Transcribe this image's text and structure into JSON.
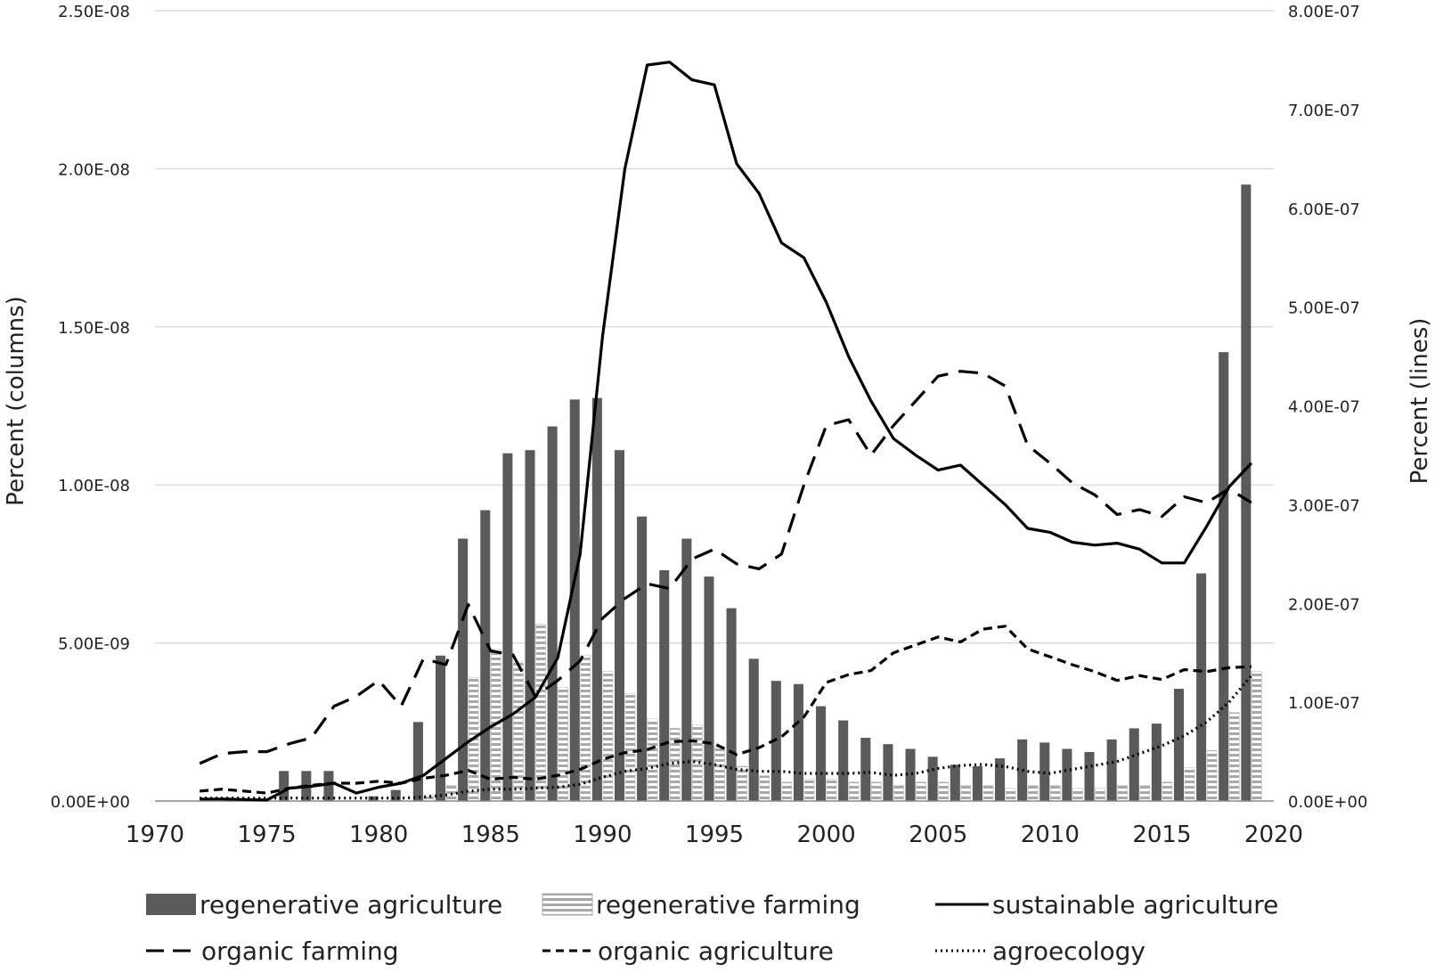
{
  "chart_data": {
    "type": "bar",
    "title": "",
    "xlabel": "",
    "ylabel_left": "Percent (columns)",
    "ylabel_right": "Percent (lines)",
    "x_ticks": [
      "1970",
      "1975",
      "1980",
      "1985",
      "1990",
      "1995",
      "2000",
      "2005",
      "2010",
      "2015",
      "2020"
    ],
    "x_range": [
      1970,
      2020
    ],
    "y_left_ticks": [
      "0.00E+00",
      "5.00E-09",
      "1.00E-08",
      "1.50E-08",
      "2.00E-08",
      "2.50E-08"
    ],
    "y_left_range": [
      0,
      2.5e-08
    ],
    "y_right_ticks": [
      "0.00E+00",
      "1.00E-07",
      "2.00E-07",
      "3.00E-07",
      "4.00E-07",
      "5.00E-07",
      "6.00E-07",
      "7.00E-07",
      "8.00E-07"
    ],
    "y_right_range": [
      0,
      8e-07
    ],
    "grid": "horizontal",
    "legend_position": "bottom",
    "years": [
      1972,
      1973,
      1974,
      1975,
      1976,
      1977,
      1978,
      1979,
      1980,
      1981,
      1982,
      1983,
      1984,
      1985,
      1986,
      1987,
      1988,
      1989,
      1990,
      1991,
      1992,
      1993,
      1994,
      1995,
      1996,
      1997,
      1998,
      1999,
      2000,
      2001,
      2002,
      2003,
      2004,
      2005,
      2006,
      2007,
      2008,
      2009,
      2010,
      2011,
      2012,
      2013,
      2014,
      2015,
      2016,
      2017,
      2018,
      2019
    ],
    "bar_series": [
      {
        "name": "regenerative agriculture",
        "axis": "left",
        "color": "#5a5a5a",
        "values": [
          0,
          0,
          0,
          0,
          9.5e-10,
          9.5e-10,
          9.5e-10,
          0,
          1.5e-10,
          3.5e-10,
          2.5e-09,
          4.6e-09,
          8.3e-09,
          9.2e-09,
          1.1e-08,
          1.11e-08,
          1.185e-08,
          1.27e-08,
          1.275e-08,
          1.11e-08,
          9e-09,
          7.3e-09,
          8.3e-09,
          7.1e-09,
          6.1e-09,
          4.5e-09,
          3.8e-09,
          3.7e-09,
          3e-09,
          2.55e-09,
          2e-09,
          1.8e-09,
          1.65e-09,
          1.4e-09,
          1.15e-09,
          1.1e-09,
          1.35e-09,
          1.95e-09,
          1.85e-09,
          1.65e-09,
          1.55e-09,
          1.95e-09,
          2.3e-09,
          2.45e-09,
          3.55e-09,
          7.2e-09,
          1.42e-08,
          1.95e-08
        ]
      },
      {
        "name": "regenerative farming",
        "axis": "left",
        "color": "#b5b5b5",
        "values": [
          0,
          0,
          0,
          0,
          0,
          0,
          0,
          0,
          0,
          0,
          2e-10,
          5e-10,
          3.9e-09,
          4.8e-09,
          4.4e-09,
          5.6e-09,
          3.6e-09,
          4.6e-09,
          4.1e-09,
          3.4e-09,
          2.6e-09,
          2.3e-09,
          2.4e-09,
          1.7e-09,
          1.1e-09,
          8e-10,
          6e-10,
          7e-10,
          7e-10,
          6e-10,
          6e-10,
          5e-10,
          6e-10,
          6e-10,
          5e-10,
          5e-10,
          4e-10,
          5e-10,
          5e-10,
          4e-10,
          4e-10,
          5e-10,
          5e-10,
          6e-10,
          1.05e-09,
          1.6e-09,
          2.8e-09,
          4.1e-09
        ]
      }
    ],
    "line_series": [
      {
        "name": "sustainable agriculture",
        "axis": "right",
        "style": "solid",
        "values": [
          2e-09,
          2e-09,
          1.5e-09,
          1e-09,
          1.3e-08,
          1.5e-08,
          1.8e-08,
          8e-09,
          1.4e-08,
          1.8e-08,
          2.6e-08,
          4.3e-08,
          6e-08,
          7.5e-08,
          8.8e-08,
          1.05e-07,
          1.45e-07,
          2.5e-07,
          4.7e-07,
          6.4e-07,
          7.45e-07,
          7.48e-07,
          7.3e-07,
          7.25e-07,
          6.45e-07,
          6.15e-07,
          5.65e-07,
          5.5e-07,
          5.05e-07,
          4.5e-07,
          4.05e-07,
          3.67e-07,
          3.5e-07,
          3.35e-07,
          3.4e-07,
          3.2e-07,
          3e-07,
          2.76e-07,
          2.72e-07,
          2.62e-07,
          2.59e-07,
          2.61e-07,
          2.55e-07,
          2.41e-07,
          2.41e-07,
          2.78e-07,
          3.18e-07,
          3.42e-07
        ]
      },
      {
        "name": "organic farming",
        "axis": "right",
        "style": "long-dash",
        "values": [
          3.8e-08,
          4.8e-08,
          5e-08,
          5e-08,
          5.8e-08,
          6.4e-08,
          9.6e-08,
          1.06e-07,
          1.22e-07,
          9.6e-08,
          1.44e-07,
          1.38e-07,
          1.99e-07,
          1.52e-07,
          1.48e-07,
          1.06e-07,
          1.22e-07,
          1.42e-07,
          1.85e-07,
          2.05e-07,
          2.2e-07,
          2.15e-07,
          2.45e-07,
          2.55e-07,
          2.4e-07,
          2.35e-07,
          2.5e-07,
          3.2e-07,
          3.8e-07,
          3.86e-07,
          3.5e-07,
          3.8e-07,
          4.05e-07,
          4.3e-07,
          4.35e-07,
          4.33e-07,
          4.2e-07,
          3.6e-07,
          3.42e-07,
          3.22e-07,
          3.1e-07,
          2.9e-07,
          2.95e-07,
          2.88e-07,
          3.08e-07,
          3.02e-07,
          3.16e-07,
          3.02e-07
        ]
      },
      {
        "name": "organic agriculture",
        "axis": "right",
        "style": "short-dash",
        "values": [
          1e-08,
          1.2e-08,
          1e-08,
          8e-09,
          1.3e-08,
          1.6e-08,
          1.8e-08,
          1.8e-08,
          2e-08,
          1.8e-08,
          2.3e-08,
          2.6e-08,
          3.1e-08,
          2.2e-08,
          2.4e-08,
          2.2e-08,
          2.6e-08,
          3.2e-08,
          4.2e-08,
          4.9e-08,
          5.2e-08,
          6e-08,
          6.1e-08,
          5.8e-08,
          4.7e-08,
          5.4e-08,
          6.5e-08,
          8.5e-08,
          1.2e-07,
          1.28e-07,
          1.32e-07,
          1.5e-07,
          1.58e-07,
          1.66e-07,
          1.61e-07,
          1.74e-07,
          1.77e-07,
          1.54e-07,
          1.46e-07,
          1.38e-07,
          1.31e-07,
          1.22e-07,
          1.27e-07,
          1.23e-07,
          1.33e-07,
          1.31e-07,
          1.35e-07,
          1.36e-07
        ]
      },
      {
        "name": "agroecology",
        "axis": "right",
        "style": "dotted",
        "values": [
          3e-09,
          3e-09,
          3e-09,
          3e-09,
          3e-09,
          3e-09,
          3e-09,
          3e-09,
          3e-09,
          3e-09,
          4e-09,
          6e-09,
          1e-08,
          1.2e-08,
          1.2e-08,
          1.3e-08,
          1.4e-08,
          1.7e-08,
          2.4e-08,
          3e-08,
          3.3e-08,
          3.8e-08,
          4e-08,
          3.7e-08,
          3.2e-08,
          3e-08,
          3e-08,
          2.8e-08,
          2.8e-08,
          2.8e-08,
          2.9e-08,
          2.6e-08,
          2.8e-08,
          3.3e-08,
          3.6e-08,
          3.7e-08,
          3.5e-08,
          3e-08,
          2.8e-08,
          3.2e-08,
          3.6e-08,
          4e-08,
          4.8e-08,
          5.6e-08,
          6.6e-08,
          8e-08,
          1e-07,
          1.27e-07
        ]
      }
    ],
    "legend": [
      {
        "label": "regenerative agriculture",
        "kind": "bar-solid"
      },
      {
        "label": "regenerative farming",
        "kind": "bar-striped"
      },
      {
        "label": "sustainable agriculture",
        "kind": "line-solid"
      },
      {
        "label": "organic farming",
        "kind": "line-long-dash"
      },
      {
        "label": "organic agriculture",
        "kind": "line-short-dash"
      },
      {
        "label": "agroecology",
        "kind": "line-dotted"
      }
    ]
  }
}
